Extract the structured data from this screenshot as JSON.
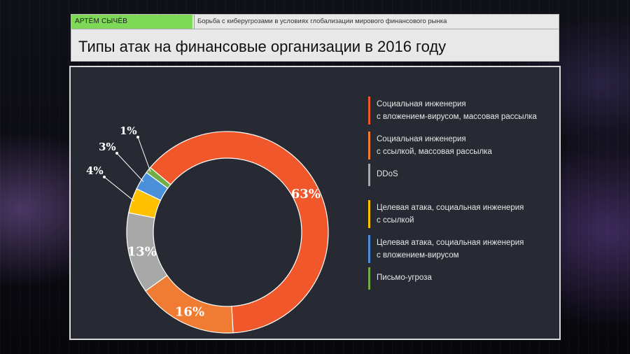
{
  "header": {
    "author": "АРТЁМ СЫЧЁВ",
    "subtitle": "Борьба с киберугрозами в условиях глобализации мирового финансового рынка",
    "title": "Типы атак на финансовые организации в 2016 году"
  },
  "chart_data": {
    "type": "pie",
    "variant": "donut",
    "legend_position": "right",
    "unit": "%",
    "series": [
      {
        "name": "Социальная инженерия\nс вложением-вирусом, массовая рассылка",
        "value": 63,
        "label": "63%",
        "color": "#f0572a"
      },
      {
        "name": "Социальная инженерия\nс ссылкой, массовая рассылка",
        "value": 16,
        "label": "16%",
        "color": "#f07b32"
      },
      {
        "name": "DDoS",
        "value": 13,
        "label": "13%",
        "color": "#a8a8a8"
      },
      {
        "name": "Целевая атака, социальная инженерия\nс ссылкой",
        "value": 4,
        "label": "4%",
        "color": "#ffc000"
      },
      {
        "name": "Целевая атака, социальная инженерия\nс вложением-вирусом",
        "value": 3,
        "label": "3%",
        "color": "#4a90d9"
      },
      {
        "name": "Письмо-угроза",
        "value": 1,
        "label": "1%",
        "color": "#70ad47"
      }
    ]
  }
}
